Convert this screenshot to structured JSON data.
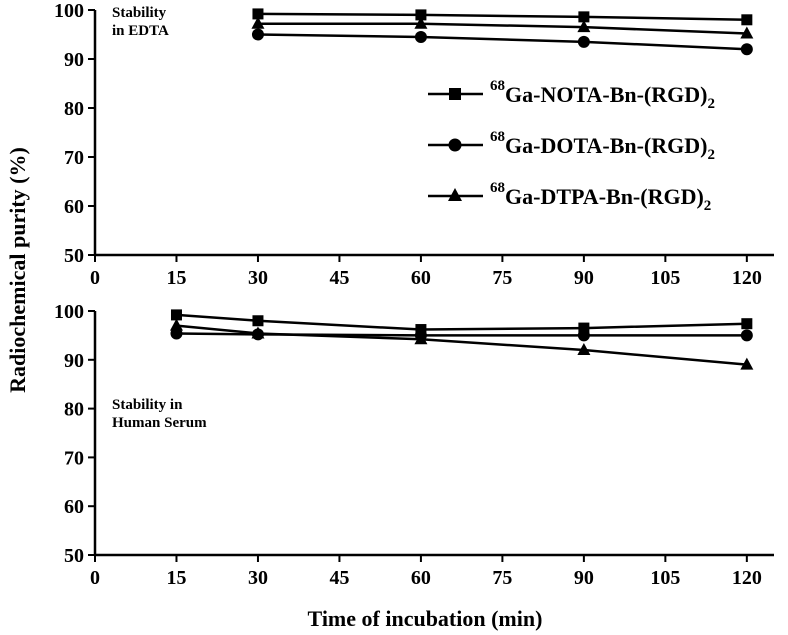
{
  "chart_data": [
    {
      "type": "line",
      "panel": "top",
      "annotation": [
        "Stability",
        "in EDTA"
      ],
      "x": [
        30,
        60,
        90,
        120
      ],
      "xlim": [
        0,
        125
      ],
      "ylim": [
        50,
        100
      ],
      "xticks": [
        "0",
        "15",
        "30",
        "45",
        "60",
        "75",
        "90",
        "105",
        "120"
      ],
      "yticks": [
        "50",
        "60",
        "70",
        "80",
        "90",
        "100"
      ],
      "series": [
        {
          "name": "68Ga-NOTA-Bn-(RGD)2",
          "marker": "square",
          "values": [
            99.2,
            99.0,
            98.6,
            98.0
          ]
        },
        {
          "name": "68Ga-DOTA-Bn-(RGD)2",
          "marker": "circle",
          "values": [
            95.0,
            94.5,
            93.5,
            92.0
          ]
        },
        {
          "name": "68Ga-DTPA-Bn-(RGD)2",
          "marker": "triangle",
          "values": [
            97.2,
            97.2,
            96.5,
            95.2
          ]
        }
      ]
    },
    {
      "type": "line",
      "panel": "bottom",
      "annotation": [
        "Stability in",
        "Human Serum"
      ],
      "x": [
        15,
        30,
        60,
        90,
        120
      ],
      "xlim": [
        0,
        125
      ],
      "ylim": [
        50,
        100
      ],
      "xticks": [
        "0",
        "15",
        "30",
        "45",
        "60",
        "75",
        "90",
        "105",
        "120"
      ],
      "yticks": [
        "50",
        "60",
        "70",
        "80",
        "90",
        "100"
      ],
      "series": [
        {
          "name": "68Ga-NOTA-Bn-(RGD)2",
          "marker": "square",
          "values": [
            99.2,
            98.0,
            96.2,
            96.5,
            97.4
          ]
        },
        {
          "name": "68Ga-DOTA-Bn-(RGD)2",
          "marker": "circle",
          "values": [
            95.4,
            95.2,
            95.0,
            95.0,
            95.0
          ]
        },
        {
          "name": "68Ga-DTPA-Bn-(RGD)2",
          "marker": "triangle",
          "values": [
            97.0,
            95.4,
            94.2,
            92.0,
            89.0
          ]
        }
      ]
    }
  ],
  "labels": {
    "ylabel": "Radiochemical purity (%)",
    "xlabel": "Time of incubation (min)"
  },
  "legend": [
    {
      "sup": "68",
      "main": "Ga-NOTA-Bn-(RGD)",
      "sub": "2",
      "marker": "square"
    },
    {
      "sup": "68",
      "main": "Ga-DOTA-Bn-(RGD)",
      "sub": "2",
      "marker": "circle"
    },
    {
      "sup": "68",
      "main": "Ga-DTPA-Bn-(RGD)",
      "sub": "2",
      "marker": "triangle"
    }
  ]
}
